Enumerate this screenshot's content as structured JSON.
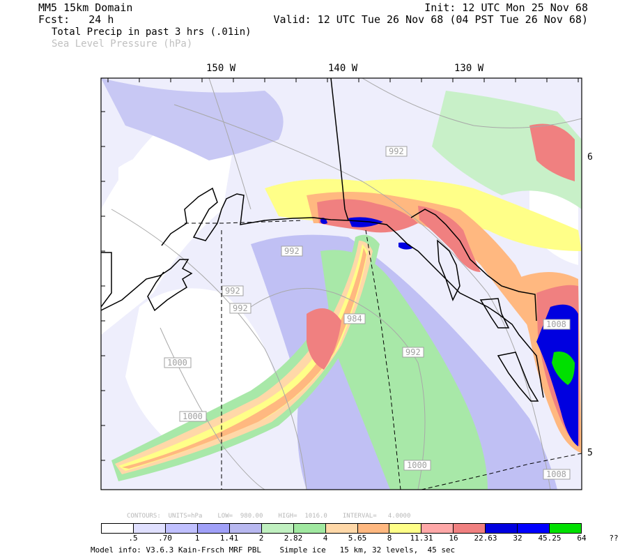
{
  "header": {
    "domain": "MM5 15km Domain",
    "fcst": "Fcst:   24 h",
    "init": "Init: 12 UTC Mon 25 Nov 68",
    "valid": "Valid: 12 UTC Tue 26 Nov 68 (04 PST Tue 26 Nov 68)",
    "field1": "Total Precip in past 3 hrs (.01in)",
    "field2": "Sea Level Pressure (hPa)"
  },
  "longitudes": [
    "150 W",
    "140 W",
    "130 W"
  ],
  "latitudes": [
    "6",
    "5"
  ],
  "pressure_labels": [
    "992",
    "992",
    "992",
    "984",
    "1000",
    "1000",
    "1000",
    "992",
    "1008",
    "1008",
    "992"
  ],
  "contours": {
    "units": "CONTOURS:  UNITS=hPa",
    "low": "LOW=  980.00",
    "high": "HIGH=  1016.0",
    "interval": "INTERVAL=   4.0000"
  },
  "colorbar": {
    "colors": [
      "#ffffff",
      "#e0e0ff",
      "#c0c0ff",
      "#a0a0f8",
      "#b8b8f0",
      "#c0f0c0",
      "#a0e8a0",
      "#ffd8a8",
      "#ffb880",
      "#ffff88",
      "#ffa8a8",
      "#f08080",
      "#0000e0",
      "#0000ff",
      "#00e000"
    ],
    "labels": [
      ".5",
      ".70",
      "1",
      "1.41",
      "2",
      "2.82",
      "4",
      "5.65",
      "8",
      "11.31",
      "16",
      "22.63",
      "32",
      "45.25",
      "64",
      "??"
    ]
  },
  "model_info": "Model info: V3.6.3 Kain-Frsch MRF PBL    Simple ice   15 km, 32 levels,  45 sec"
}
